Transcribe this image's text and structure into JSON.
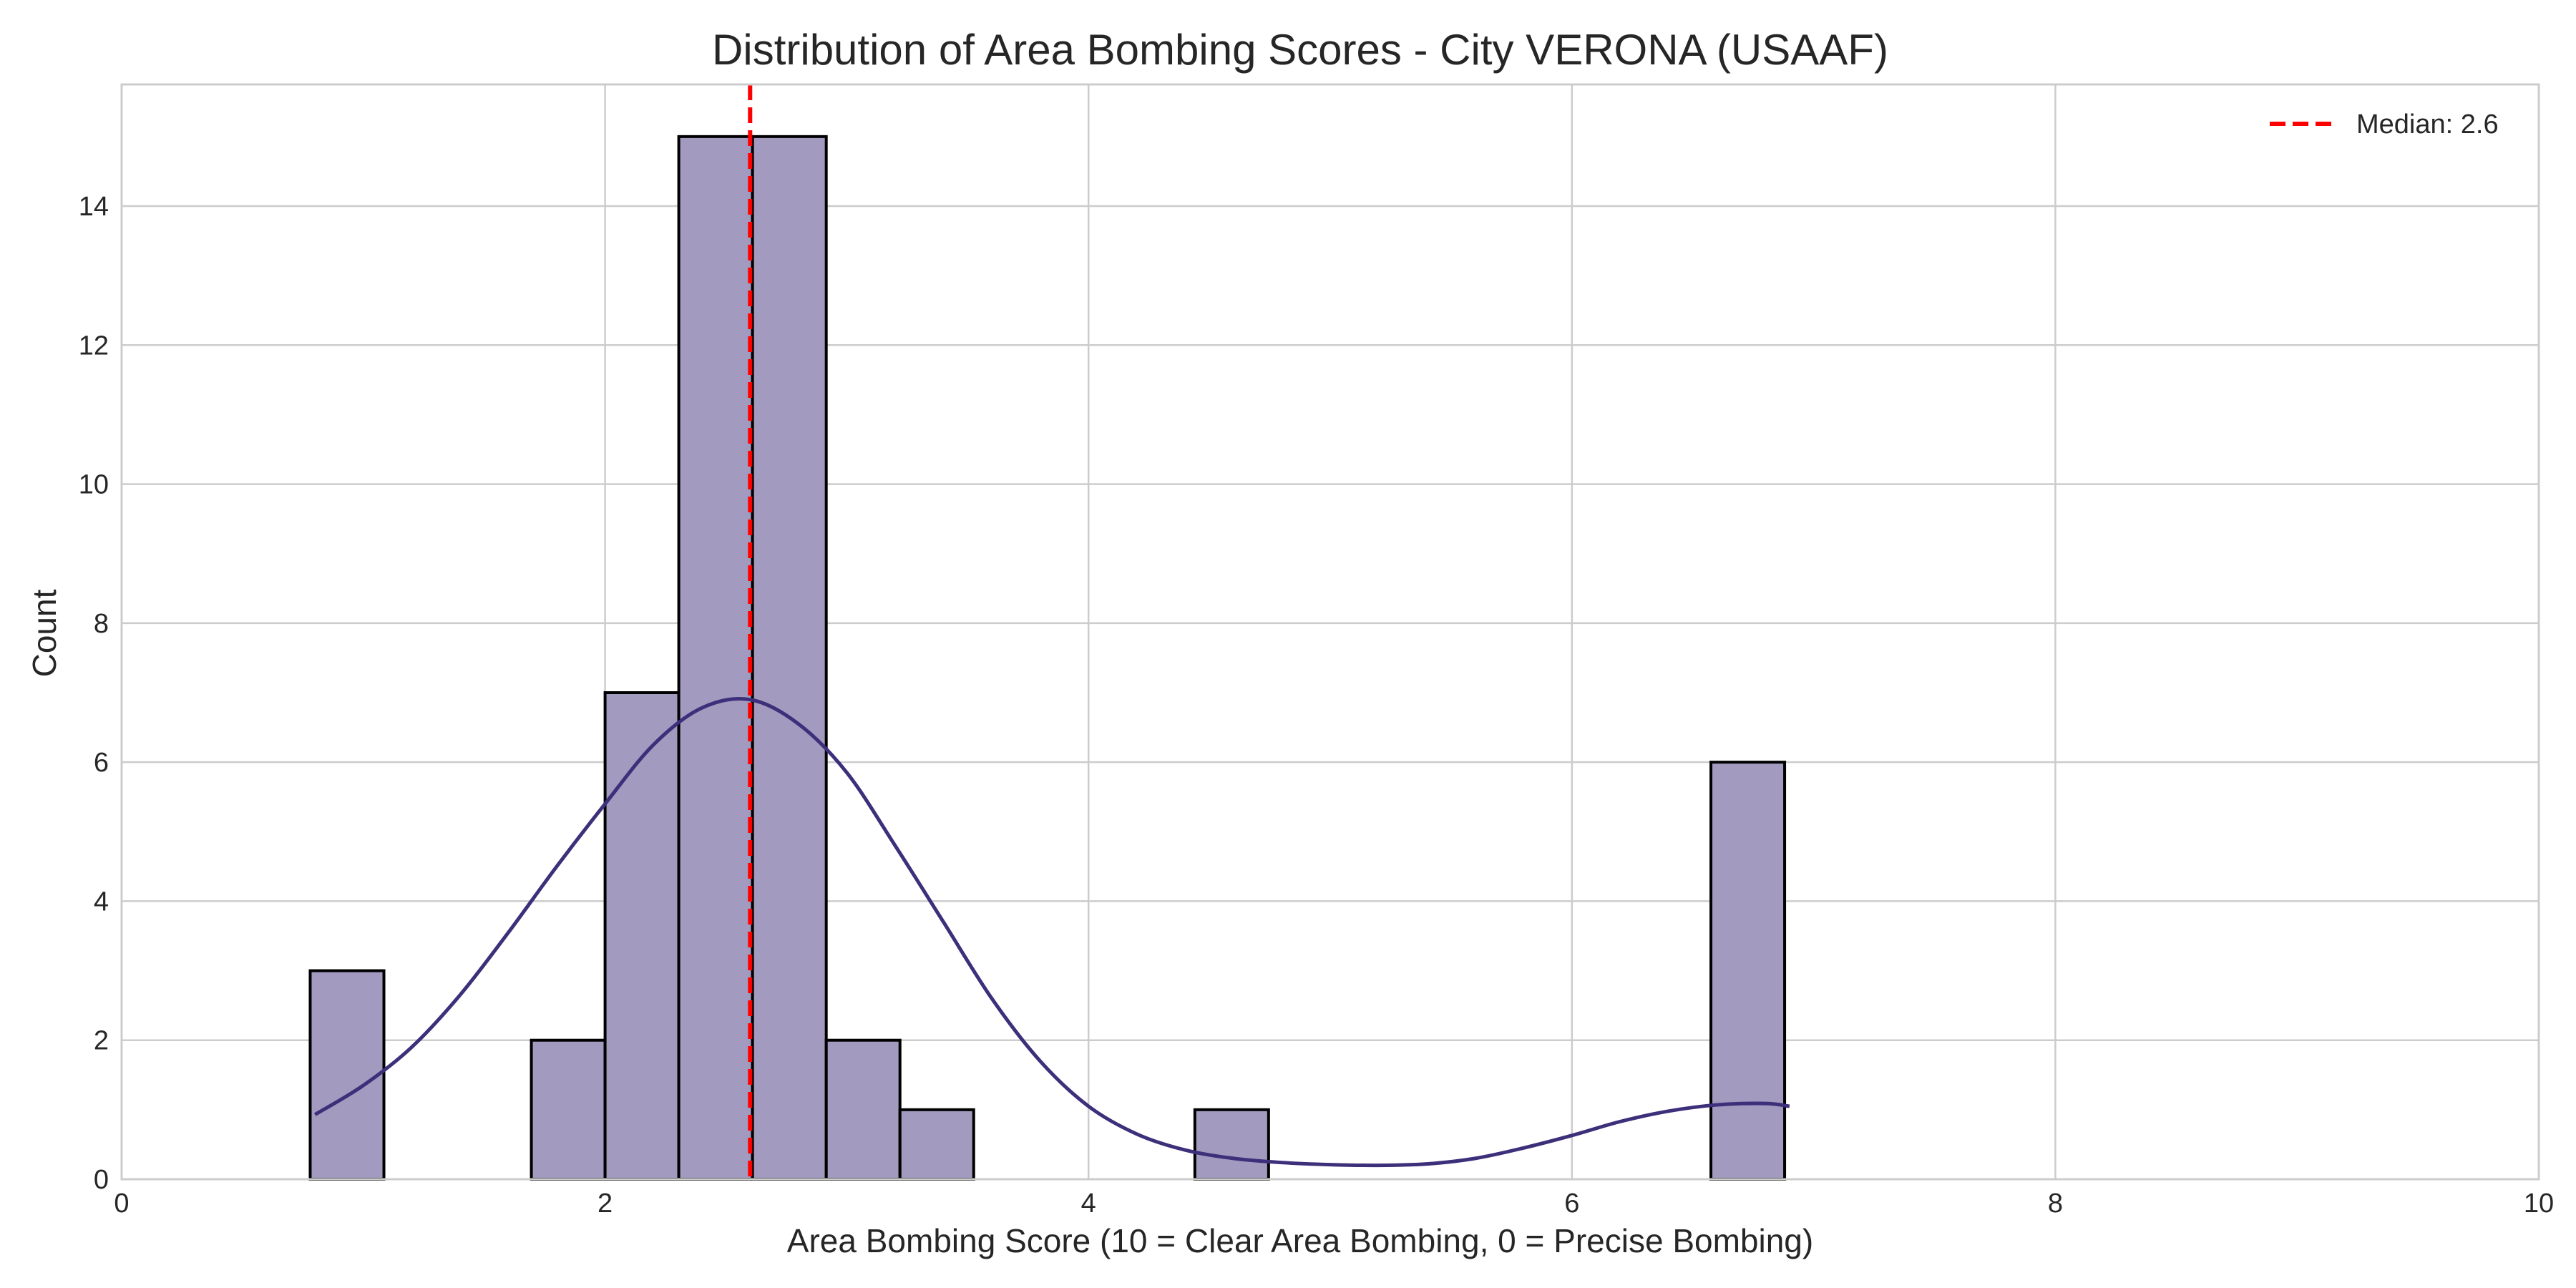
{
  "chart_data": {
    "type": "bar",
    "title": "Distribution of Area Bombing Scores - City VERONA (USAAF)",
    "xlabel": "Area Bombing Score (10 = Clear Area Bombing, 0 = Precise Bombing)",
    "ylabel": "Count",
    "xlim": [
      0,
      10
    ],
    "ylim": [
      0,
      15.75
    ],
    "xticks": [
      0,
      2,
      4,
      6,
      8,
      10
    ],
    "yticks": [
      0,
      2,
      4,
      6,
      8,
      10,
      12,
      14
    ],
    "grid": true,
    "bins": {
      "edges": [
        0.78,
        1.085,
        1.39,
        1.695,
        2.0,
        2.305,
        2.61,
        2.915,
        3.22,
        3.525,
        3.83,
        4.135,
        4.44,
        4.745,
        5.05,
        5.355,
        5.66,
        5.965,
        6.27,
        6.575,
        6.88
      ],
      "counts": [
        3,
        0,
        0,
        2,
        7,
        15,
        15,
        2,
        1,
        0,
        0,
        0,
        1,
        0,
        0,
        0,
        0,
        0,
        0,
        6
      ]
    },
    "kde": {
      "x": [
        0.8,
        1.0,
        1.2,
        1.4,
        1.6,
        1.8,
        2.0,
        2.2,
        2.4,
        2.6,
        2.8,
        3.0,
        3.2,
        3.4,
        3.6,
        3.8,
        4.0,
        4.2,
        4.4,
        4.6,
        4.8,
        5.0,
        5.2,
        5.4,
        5.6,
        5.8,
        6.0,
        6.2,
        6.4,
        6.6,
        6.8,
        6.9
      ],
      "y": [
        0.93,
        1.35,
        1.9,
        2.65,
        3.55,
        4.5,
        5.4,
        6.25,
        6.78,
        6.9,
        6.55,
        5.85,
        4.8,
        3.7,
        2.6,
        1.7,
        1.05,
        0.65,
        0.42,
        0.3,
        0.24,
        0.21,
        0.2,
        0.22,
        0.3,
        0.45,
        0.63,
        0.83,
        0.98,
        1.07,
        1.09,
        1.05
      ]
    },
    "median": 2.6,
    "legend": {
      "position": "top-right",
      "entries": [
        "Median: 2.6"
      ]
    },
    "colors": {
      "bar_fill": "#a39abf",
      "bar_edge": "#000000",
      "kde_line": "#3d2f7a",
      "median_line": "#ff0000",
      "grid": "#cccccc",
      "spine": "#cccccc"
    }
  }
}
